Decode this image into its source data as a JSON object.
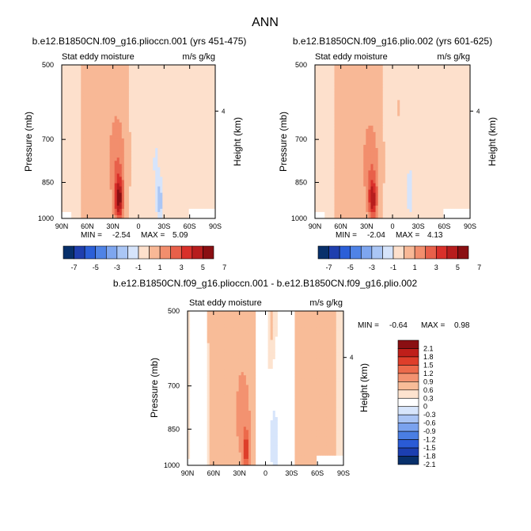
{
  "page_title": "ANN",
  "colors": {
    "palette_top": [
      "#08306b",
      "#1f3fae",
      "#2b5fd8",
      "#4f83e6",
      "#7ea6ef",
      "#aac6f5",
      "#d6e4fb",
      "#fde0cc",
      "#f8b896",
      "#f28e6d",
      "#e8604a",
      "#d9302a",
      "#b71d1d",
      "#8a0f12"
    ],
    "palette_diff": [
      "#08306b",
      "#1c3fb0",
      "#2a5bd6",
      "#4a7ee3",
      "#7aa2ee",
      "#a9c4f4",
      "#d7e5fb",
      "#ffffff",
      "#fde3cf",
      "#f8bc98",
      "#f39270",
      "#ec6a4b",
      "#de3e2a",
      "#bf1f1a",
      "#8a0f12"
    ]
  },
  "chart_data": [
    {
      "type": "heatmap",
      "title": "b.e12.B1850CN.f09_g16.plioccn.001 (yrs 451-475)",
      "left_label": "Stat eddy moisture",
      "right_label": "m/s g/kg",
      "ylabel": "Pressure (mb)",
      "y2label": "Height (km)",
      "y2_ticks": [
        "4"
      ],
      "x_ticks": [
        "90N",
        "60N",
        "30N",
        "0",
        "30S",
        "60S",
        "90S"
      ],
      "y_ticks": [
        "500",
        "700",
        "850",
        "1000"
      ],
      "min_label": "MIN =",
      "min_value": "-2.54",
      "max_label": "MAX =",
      "max_value": "5.09",
      "zmin": -2.54,
      "zmax": 5.09,
      "features": [
        {
          "lat": 23,
          "p": 920,
          "val": 5.0,
          "wlat": 5,
          "wp": 85
        },
        {
          "lat": 25,
          "p": 780,
          "val": 1.6,
          "wlat": 10,
          "wp": 160
        },
        {
          "lat": 35,
          "p": 650,
          "val": 0.35,
          "wlat": 30,
          "wp": 400
        },
        {
          "lat": -25,
          "p": 930,
          "val": -2.3,
          "wlat": 4,
          "wp": 90
        },
        {
          "lat": -20,
          "p": 780,
          "val": -1.0,
          "wlat": 6,
          "wp": 170
        },
        {
          "lat": -50,
          "p": 650,
          "val": -0.5,
          "wlat": 25,
          "wp": 500
        },
        {
          "lat": 5,
          "p": 700,
          "val": -0.45,
          "wlat": 7,
          "wp": 500
        },
        {
          "lat": 78,
          "p": 700,
          "val": -0.45,
          "wlat": 8,
          "wp": 500
        }
      ]
    },
    {
      "type": "heatmap",
      "title": "b.e12.B1850CN.f09_g16.plio.002 (yrs 601-625)",
      "left_label": "Stat eddy moisture",
      "right_label": "m/s g/kg",
      "ylabel": "Pressure (mb)",
      "y2label": "Height (km)",
      "y2_ticks": [
        "4"
      ],
      "x_ticks": [
        "90N",
        "60N",
        "30N",
        "0",
        "30S",
        "60S",
        "90S"
      ],
      "y_ticks": [
        "500",
        "700",
        "850",
        "1000"
      ],
      "min_label": "MIN =",
      "min_value": "-2.04",
      "max_label": "MAX =",
      "max_value": "4.13",
      "zmin": -2.04,
      "zmax": 4.13,
      "features": [
        {
          "lat": 23,
          "p": 920,
          "val": 4.0,
          "wlat": 5,
          "wp": 85
        },
        {
          "lat": 25,
          "p": 790,
          "val": 1.4,
          "wlat": 10,
          "wp": 160
        },
        {
          "lat": 35,
          "p": 650,
          "val": 0.35,
          "wlat": 30,
          "wp": 400
        },
        {
          "lat": -20,
          "p": 890,
          "val": -1.6,
          "wlat": 5,
          "wp": 110
        },
        {
          "lat": -50,
          "p": 650,
          "val": -0.5,
          "wlat": 25,
          "wp": 500
        },
        {
          "lat": 5,
          "p": 700,
          "val": -0.45,
          "wlat": 7,
          "wp": 500
        },
        {
          "lat": 78,
          "p": 700,
          "val": -0.45,
          "wlat": 8,
          "wp": 500
        }
      ]
    },
    {
      "type": "heatmap",
      "title": "b.e12.B1850CN.f09_g16.plioccn.001 - b.e12.B1850CN.f09_g16.plio.002",
      "left_label": "Stat eddy moisture",
      "right_label": "m/s g/kg",
      "ylabel": "Pressure (mb)",
      "y2label": "Height (km)",
      "y2_ticks": [
        "4"
      ],
      "x_ticks": [
        "90N",
        "60N",
        "30N",
        "0",
        "30S",
        "60S",
        "90S"
      ],
      "y_ticks": [
        "500",
        "700",
        "850",
        "1000"
      ],
      "min_label": "MIN =",
      "min_value": "-0.64",
      "max_label": "MAX =",
      "max_value": "0.98",
      "zmin": -0.64,
      "zmax": 0.98,
      "features": [
        {
          "lat": 22,
          "p": 940,
          "val": 0.9,
          "wlat": 4,
          "wp": 70
        },
        {
          "lat": 25,
          "p": 820,
          "val": 0.4,
          "wlat": 8,
          "wp": 160
        },
        {
          "lat": 40,
          "p": 650,
          "val": 0.2,
          "wlat": 30,
          "wp": 500
        },
        {
          "lat": -10,
          "p": 900,
          "val": -0.55,
          "wlat": 6,
          "wp": 150
        },
        {
          "lat": -25,
          "p": 700,
          "val": -0.25,
          "wlat": 8,
          "wp": 400
        },
        {
          "lat": 75,
          "p": 700,
          "val": -0.3,
          "wlat": 8,
          "wp": 500
        },
        {
          "lat": 5,
          "p": 650,
          "val": -0.2,
          "wlat": 6,
          "wp": 500
        },
        {
          "lat": -50,
          "p": 650,
          "val": 0.15,
          "wlat": 20,
          "wp": 500
        }
      ]
    }
  ],
  "colorbar_top": {
    "labels": [
      "-7",
      "-5",
      "-3",
      "-1",
      "1",
      "3",
      "5",
      "7"
    ]
  },
  "colorbar_diff": {
    "labels": [
      "2.1",
      "1.8",
      "1.5",
      "1.2",
      "0.9",
      "0.6",
      "0.3",
      "0",
      "-0.3",
      "-0.6",
      "-0.9",
      "-1.2",
      "-1.5",
      "-1.8",
      "-2.1"
    ]
  }
}
